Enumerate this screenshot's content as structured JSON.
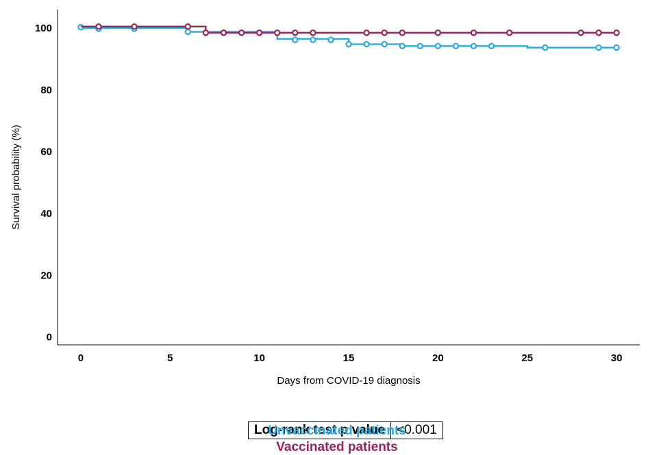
{
  "chart_data": {
    "type": "line",
    "xlabel": "Days from COVID-19 diagnosis",
    "ylabel": "Survival probability (%)",
    "xlim": [
      -1.3,
      31.3
    ],
    "ylim": [
      -2.5,
      106
    ],
    "xticks": [
      0,
      5,
      10,
      15,
      20,
      25,
      30
    ],
    "yticks": [
      0,
      20,
      40,
      60,
      80,
      100
    ],
    "x_tick_labels": [
      "0",
      "5",
      "10",
      "15",
      "20",
      "25",
      "30"
    ],
    "y_tick_labels": [
      "0",
      "20",
      "40",
      "60",
      "80",
      "100"
    ],
    "grid": false,
    "series": [
      {
        "name": "Unvaccinated patients",
        "color": "#29aae1",
        "step": [
          [
            0,
            100
          ],
          [
            6,
            98.8
          ],
          [
            11,
            96.5
          ],
          [
            15,
            94.8
          ],
          [
            18,
            94.2
          ],
          [
            25,
            93.7
          ],
          [
            30,
            93.7
          ]
        ],
        "censored": [
          [
            0,
            100.3
          ],
          [
            1,
            99.8
          ],
          [
            3,
            99.8
          ],
          [
            6,
            98.8
          ],
          [
            8,
            98.5
          ],
          [
            12,
            96.2
          ],
          [
            13,
            96.2
          ],
          [
            14,
            96.2
          ],
          [
            15,
            94.8
          ],
          [
            16,
            94.8
          ],
          [
            17,
            94.8
          ],
          [
            18,
            94.2
          ],
          [
            19,
            94.2
          ],
          [
            20,
            94.2
          ],
          [
            21,
            94.2
          ],
          [
            22,
            94.2
          ],
          [
            23,
            94.2
          ],
          [
            26,
            93.7
          ],
          [
            29,
            93.7
          ],
          [
            30,
            93.7
          ]
        ]
      },
      {
        "name": "Vaccinated patients",
        "color": "#9b2457",
        "step": [
          [
            0,
            100.5
          ],
          [
            7,
            98.5
          ],
          [
            30,
            98.5
          ]
        ],
        "censored": [
          [
            1,
            100.5
          ],
          [
            3,
            100.5
          ],
          [
            6,
            100.5
          ],
          [
            7,
            98.5
          ],
          [
            8,
            98.5
          ],
          [
            9,
            98.5
          ],
          [
            10,
            98.5
          ],
          [
            11,
            98.5
          ],
          [
            12,
            98.5
          ],
          [
            13,
            98.5
          ],
          [
            16,
            98.5
          ],
          [
            17,
            98.5
          ],
          [
            18,
            98.5
          ],
          [
            20,
            98.5
          ],
          [
            22,
            98.5
          ],
          [
            24,
            98.5
          ],
          [
            28,
            98.5
          ],
          [
            29,
            98.5
          ],
          [
            30,
            98.5
          ]
        ]
      }
    ]
  },
  "stats_table": {
    "label": "Log-rank test p value",
    "value": "<0.001"
  },
  "legend": {
    "unvaccinated": "Unvaccinated patients",
    "vaccinated": "Vaccinated patients"
  }
}
